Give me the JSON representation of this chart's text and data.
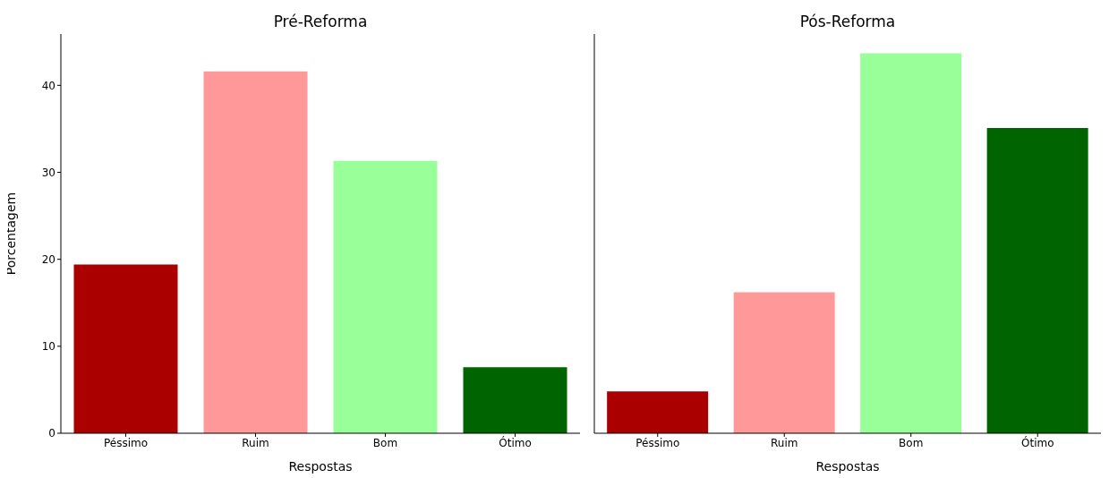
{
  "chart_data": [
    {
      "type": "bar",
      "title": "Pré-Reforma",
      "xlabel": "Respostas",
      "ylabel": "Porcentagem",
      "categories": [
        "Péssimo",
        "Ruim",
        "Bom",
        "Ótimo"
      ],
      "values": [
        19.4,
        41.6,
        31.3,
        7.6
      ],
      "colors": [
        "#aa0000",
        "#ff9999",
        "#99ff99",
        "#006400"
      ],
      "ylim": [
        0,
        45.9
      ],
      "yticks": [
        0,
        10,
        20,
        30,
        40
      ],
      "grid": false,
      "legend": false
    },
    {
      "type": "bar",
      "title": "Pós-Reforma",
      "xlabel": "Respostas",
      "categories": [
        "Péssimo",
        "Ruim",
        "Bom",
        "Ótimo"
      ],
      "values": [
        4.8,
        16.2,
        43.7,
        35.1
      ],
      "colors": [
        "#aa0000",
        "#ff9999",
        "#99ff99",
        "#006400"
      ],
      "ylim": [
        0,
        45.9
      ],
      "yticks": [
        0,
        10,
        20,
        30,
        40
      ],
      "grid": false,
      "legend": false,
      "tick_labels": "x"
    }
  ]
}
